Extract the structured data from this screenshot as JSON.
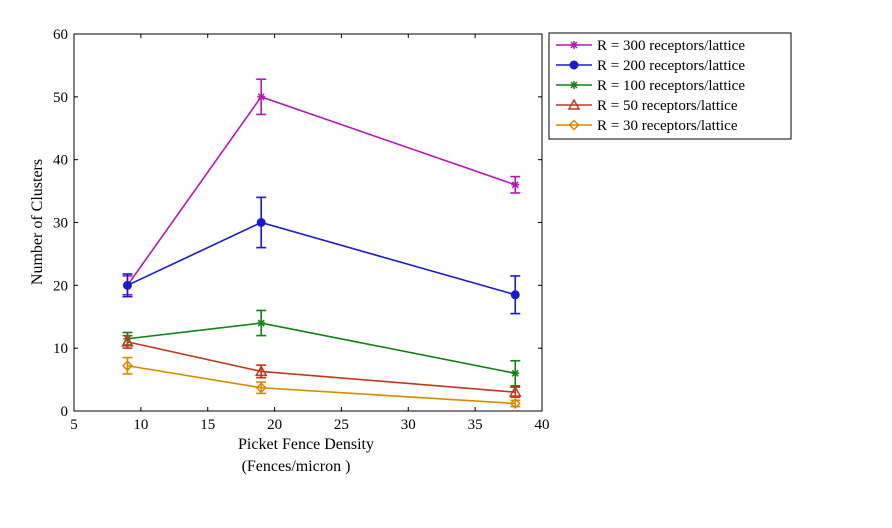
{
  "chart_data": {
    "type": "line",
    "xlabel": "Picket Fence Density",
    "xlabel_line2": "(Fences/micron )",
    "ylabel": "Number of Clusters",
    "xlim": [
      5,
      40
    ],
    "ylim": [
      0,
      60
    ],
    "xticks": [
      5,
      10,
      15,
      20,
      25,
      30,
      35,
      40
    ],
    "yticks": [
      0,
      10,
      20,
      30,
      40,
      50,
      60
    ],
    "grid": false,
    "legend_position": "outside-top-right",
    "x": [
      9,
      19,
      38
    ],
    "series": [
      {
        "name": "R = 300 receptors/lattice",
        "color": "#b31ab3",
        "marker": "star",
        "values": [
          20,
          50,
          36
        ],
        "errors": [
          1.5,
          2.8,
          1.3
        ]
      },
      {
        "name": "R = 200 receptors/lattice",
        "color": "#1a1acc",
        "marker": "circle",
        "values": [
          20,
          30,
          18.5
        ],
        "errors": [
          1.8,
          4.0,
          3.0
        ]
      },
      {
        "name": "R = 100 receptors/lattice",
        "color": "#128012",
        "marker": "asterisk",
        "values": [
          11.5,
          14,
          6
        ],
        "errors": [
          1.0,
          2.0,
          2.0
        ]
      },
      {
        "name": "R = 50 receptors/lattice",
        "color": "#c0391b",
        "marker": "triangle",
        "values": [
          11,
          6.3,
          3
        ],
        "errors": [
          1.0,
          1.0,
          0.8
        ]
      },
      {
        "name": "R = 30 receptors/lattice",
        "color": "#d68a00",
        "marker": "diamond",
        "values": [
          7.2,
          3.7,
          1.2
        ],
        "errors": [
          1.3,
          0.9,
          0.5
        ]
      }
    ]
  }
}
